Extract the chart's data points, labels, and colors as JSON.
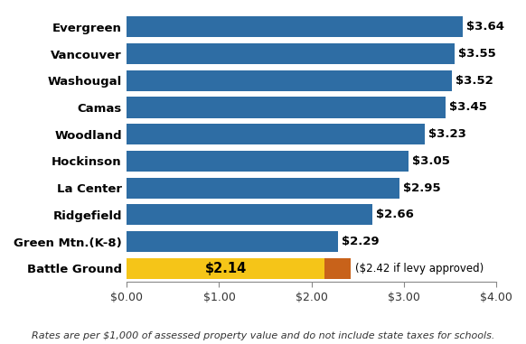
{
  "categories": [
    "Battle Ground",
    "Green Mtn.(K-8)",
    "Ridgefield",
    "La Center",
    "Hockinson",
    "Woodland",
    "Camas",
    "Washougal",
    "Vancouver",
    "Evergreen"
  ],
  "values": [
    2.14,
    2.29,
    2.66,
    2.95,
    3.05,
    3.23,
    3.45,
    3.52,
    3.55,
    3.64
  ],
  "labels": [
    "$2.14",
    "$2.29",
    "$2.66",
    "$2.95",
    "$3.05",
    "$3.23",
    "$3.45",
    "$3.52",
    "$3.55",
    "$3.64"
  ],
  "bar_colors": [
    "#F5C518",
    "#2E6DA4",
    "#2E6DA4",
    "#2E6DA4",
    "#2E6DA4",
    "#2E6DA4",
    "#2E6DA4",
    "#2E6DA4",
    "#2E6DA4",
    "#2E6DA4"
  ],
  "battle_ground_extension": 0.28,
  "battle_ground_extension_color": "#C8621A",
  "battle_ground_extension_label": "($2.42 if levy approved)",
  "battle_ground_label_value": "$2.14",
  "xlim": [
    0,
    4.0
  ],
  "xticks": [
    0.0,
    1.0,
    2.0,
    3.0,
    4.0
  ],
  "xtick_labels": [
    "$0.00",
    "$1.00",
    "$2.00",
    "$3.00",
    "$4.00"
  ],
  "footnote": "Rates are per $1,000 of assessed property value and do not include state taxes for schools.",
  "background_color": "#FFFFFF",
  "bar_height": 0.78,
  "label_fontsize": 9.5,
  "tick_fontsize": 9,
  "footnote_fontsize": 8,
  "value_label_fontweight": "bold",
  "ytick_fontsize": 9.5,
  "ytick_fontweight": "bold"
}
